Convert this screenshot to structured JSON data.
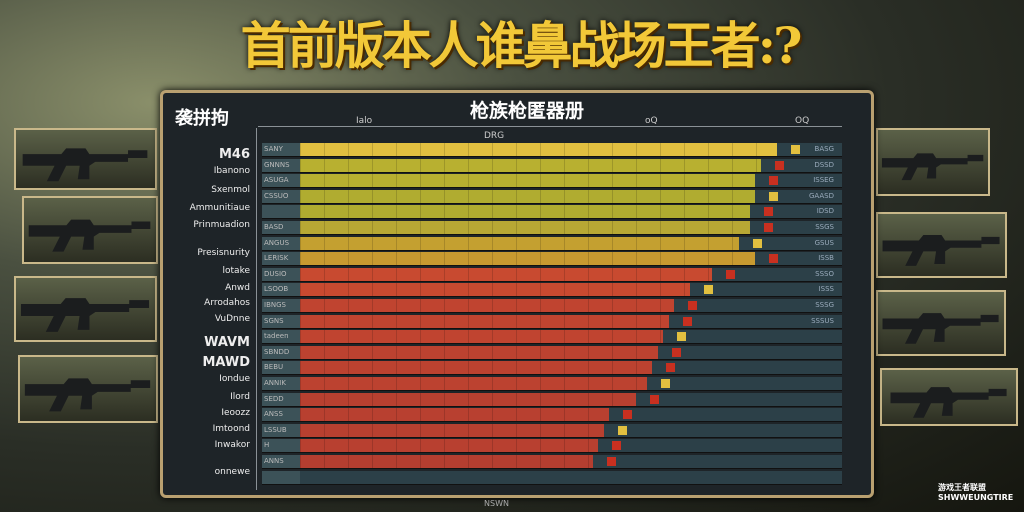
{
  "title": "首前版本人谁鼻战场王者:?",
  "panel": {
    "corner_label": "袭拼拘",
    "subtitle": "枪族枪匿器册",
    "header_tag": "DRG",
    "footer": "NSWN"
  },
  "axis_labels": [
    "Ialo",
    "oQ",
    "OQ"
  ],
  "row_labels": [
    {
      "text": "M46",
      "big": true
    },
    {
      "text": "Ibanono"
    },
    {
      "text": "Sxenmol"
    },
    {
      "text": "Ammunitiaue"
    },
    {
      "text": "Prinmuadion"
    },
    {
      "text": "Presisnurity"
    },
    {
      "text": "lotake"
    },
    {
      "text": "Anwd"
    },
    {
      "text": "Arrodahos"
    },
    {
      "text": "VuDnne"
    },
    {
      "text": "WAVM",
      "big": true
    },
    {
      "text": "MAWD",
      "big": true
    },
    {
      "text": "Iondue"
    },
    {
      "text": "Ilord"
    },
    {
      "text": "Ieoozz"
    },
    {
      "text": "Imtoond"
    },
    {
      "text": "Inwakor"
    },
    {
      "text": "onnewe"
    }
  ],
  "rows": [
    {
      "cell": "SANY",
      "fill_pct": 88,
      "color": "#e2c040"
    },
    {
      "cell": "GNNNS",
      "fill_pct": 85,
      "color": "#b8b030"
    },
    {
      "cell": "ASUGA",
      "fill_pct": 84,
      "color": "#b8b030"
    },
    {
      "cell": "CSSUO",
      "fill_pct": 84,
      "color": "#b0ac30"
    },
    {
      "cell": "",
      "fill_pct": 83,
      "color": "#b0ac30"
    },
    {
      "cell": "BASD",
      "fill_pct": 83,
      "color": "#b8a834"
    },
    {
      "cell": "ANGUS",
      "fill_pct": 81,
      "color": "#c4a030"
    },
    {
      "cell": "LERISK",
      "fill_pct": 84,
      "color": "#c89a30"
    },
    {
      "cell": "DUSIO",
      "fill_pct": 76,
      "color": "#c84a30"
    },
    {
      "cell": "LSOOB",
      "fill_pct": 72,
      "color": "#c84a30"
    },
    {
      "cell": "IBNGS",
      "fill_pct": 69,
      "color": "#c04430"
    },
    {
      "cell": "SGNS",
      "fill_pct": 68,
      "color": "#c04430"
    },
    {
      "cell": "tadeen",
      "fill_pct": 67,
      "color": "#c04430"
    },
    {
      "cell": "SBNDD",
      "fill_pct": 66,
      "color": "#bc4230"
    },
    {
      "cell": "BEBU",
      "fill_pct": 65,
      "color": "#bc4230"
    },
    {
      "cell": "ANNIK",
      "fill_pct": 64,
      "color": "#bc4230"
    },
    {
      "cell": "SEDD",
      "fill_pct": 62,
      "color": "#b84030"
    },
    {
      "cell": "ANSS",
      "fill_pct": 57,
      "color": "#b84030"
    },
    {
      "cell": "LSSUB",
      "fill_pct": 56,
      "color": "#b84030"
    },
    {
      "cell": "H",
      "fill_pct": 55,
      "color": "#b84030"
    },
    {
      "cell": "ANNS",
      "fill_pct": 54,
      "color": "#b43e30"
    },
    {
      "cell": "",
      "fill_pct": 0,
      "color": "#b43e30"
    }
  ],
  "right_cells": [
    "BASG",
    "DSSD",
    "ISSEG",
    "GAASD",
    "IDSD",
    "SSGS",
    "GSUS",
    "ISSB",
    "SSSO",
    "ISSS",
    "SSSG",
    "SSSUS"
  ],
  "weapons_left": [
    "assault-rifle",
    "carbine",
    "smg",
    "rifle-ground"
  ],
  "weapons_right": [
    "rifle-hand",
    "assault-rifle",
    "rifle-stock",
    "sniper-rifle"
  ],
  "watermark": [
    "游戏王者联盟",
    "SHWWEUNGTIRE"
  ]
}
